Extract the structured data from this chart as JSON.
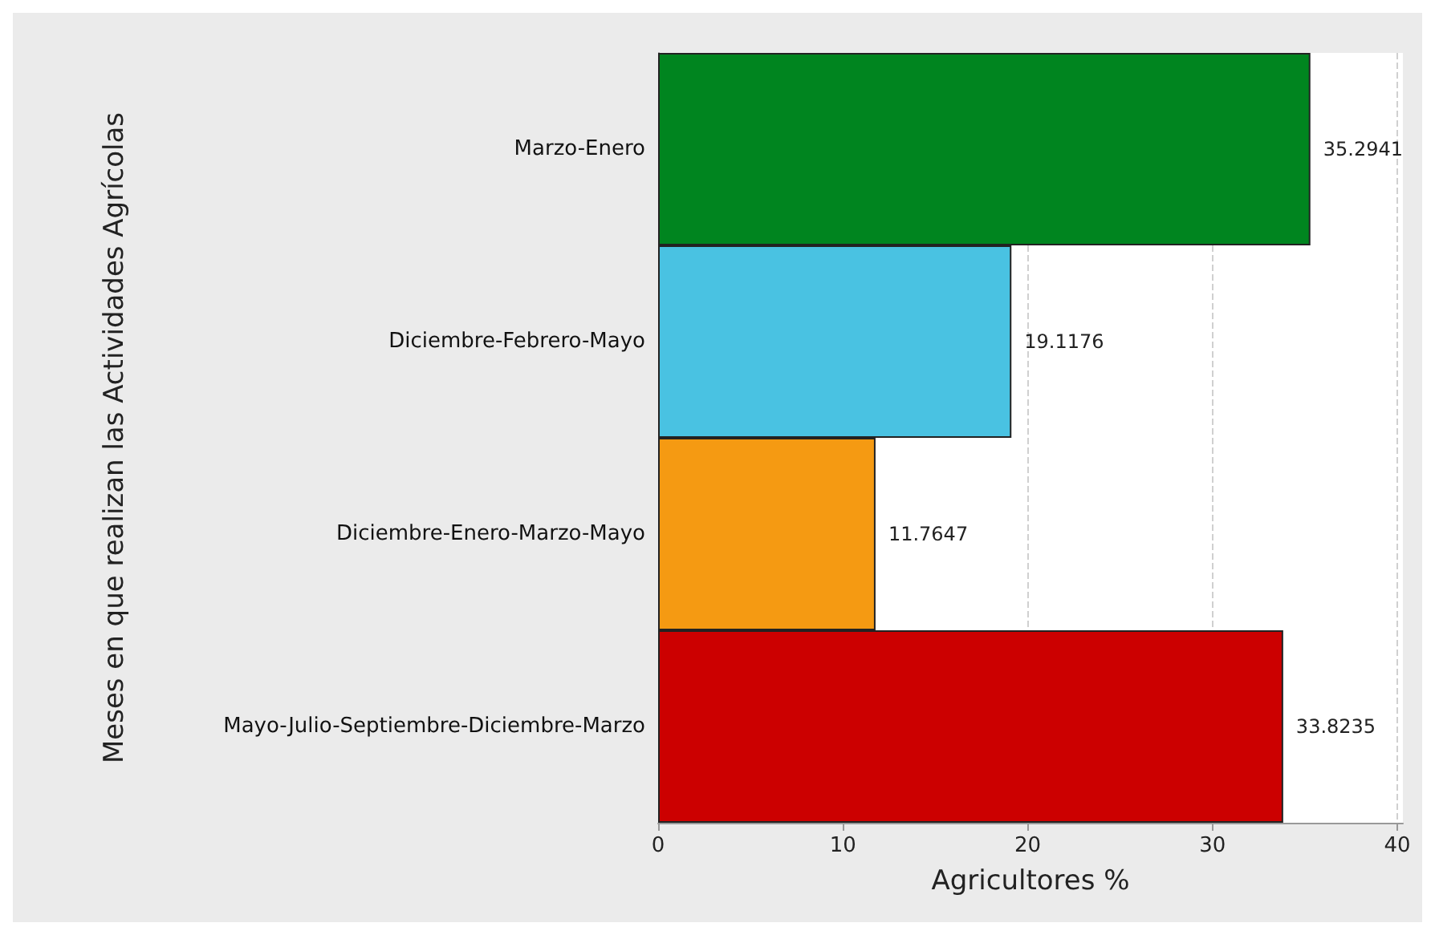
{
  "chart_data": {
    "type": "bar",
    "orientation": "horizontal",
    "xlabel": "Agricultores %",
    "ylabel": "Meses en que realizan las Actividades Agrícolas",
    "categories": [
      "Marzo-Enero",
      "Diciembre-Febrero-Mayo",
      "Diciembre-Enero-Marzo-Mayo",
      "Mayo-Julio-Septiembre-Diciembre-Marzo"
    ],
    "values": [
      35.2941,
      19.1176,
      11.7647,
      33.8235
    ],
    "colors": [
      "#00851f",
      "#49c2e2",
      "#f59a12",
      "#cc0000"
    ],
    "xlim": [
      0,
      40.3
    ],
    "xticks": [
      0,
      10,
      20,
      30,
      40
    ],
    "grid": "x",
    "data_labels": true
  }
}
